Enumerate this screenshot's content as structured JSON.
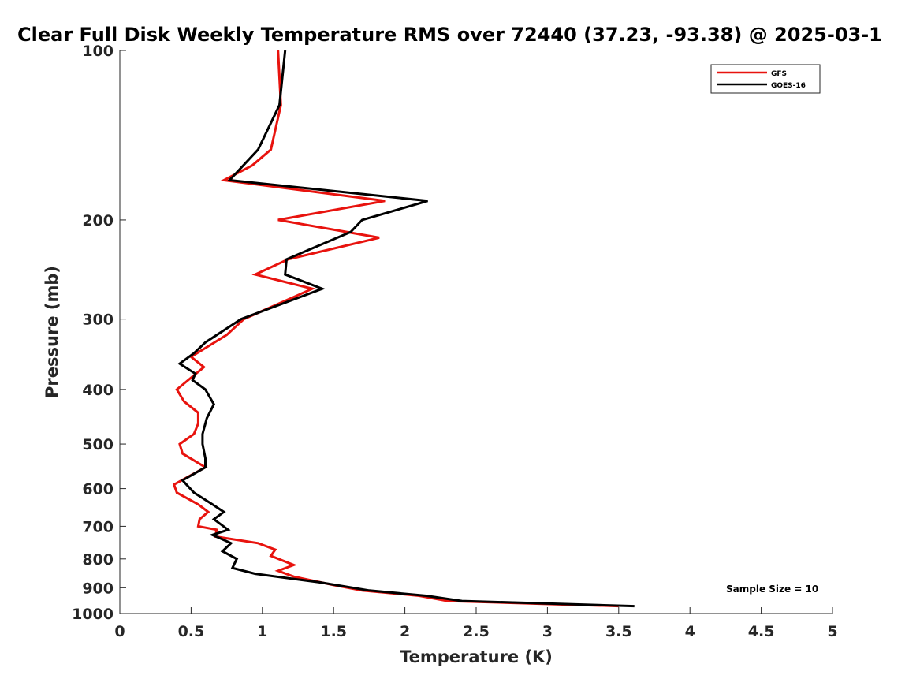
{
  "chart_data": {
    "type": "line",
    "title": "Clear Full Disk Weekly Temperature RMS over 72440 (37.23, -93.38) @ 2025-03-1",
    "xlabel": "Temperature (K)",
    "ylabel": "Pressure (mb)",
    "xlim": [
      0,
      5
    ],
    "ylim": [
      1000,
      100
    ],
    "yscale": "log",
    "x_ticks": [
      "0",
      "0.5",
      "1",
      "1.5",
      "2",
      "2.5",
      "3",
      "3.5",
      "4",
      "4.5",
      "5"
    ],
    "y_ticks": [
      "100",
      "200",
      "300",
      "400",
      "500",
      "600",
      "700",
      "800",
      "900",
      "1000"
    ],
    "legend_position": "top-right",
    "grid": false,
    "annotation": "Sample Size = 10",
    "series": [
      {
        "name": "GFS",
        "color": "#e8130e",
        "points": [
          [
            1.11,
            100
          ],
          [
            1.13,
            125
          ],
          [
            1.06,
            150
          ],
          [
            0.93,
            160
          ],
          [
            0.73,
            170
          ],
          [
            1.86,
            185
          ],
          [
            1.11,
            200
          ],
          [
            1.82,
            215
          ],
          [
            1.18,
            235
          ],
          [
            0.95,
            250
          ],
          [
            1.35,
            265
          ],
          [
            0.87,
            300
          ],
          [
            0.75,
            320
          ],
          [
            0.5,
            350
          ],
          [
            0.59,
            365
          ],
          [
            0.4,
            400
          ],
          [
            0.45,
            420
          ],
          [
            0.55,
            440
          ],
          [
            0.55,
            460
          ],
          [
            0.52,
            480
          ],
          [
            0.42,
            500
          ],
          [
            0.44,
            520
          ],
          [
            0.6,
            550
          ],
          [
            0.38,
            590
          ],
          [
            0.4,
            610
          ],
          [
            0.55,
            640
          ],
          [
            0.62,
            660
          ],
          [
            0.56,
            680
          ],
          [
            0.55,
            700
          ],
          [
            0.68,
            710
          ],
          [
            0.67,
            730
          ],
          [
            0.97,
            750
          ],
          [
            1.09,
            770
          ],
          [
            1.06,
            790
          ],
          [
            1.22,
            820
          ],
          [
            1.11,
            840
          ],
          [
            1.22,
            860
          ],
          [
            1.5,
            890
          ],
          [
            1.7,
            910
          ],
          [
            2.1,
            930
          ],
          [
            2.3,
            950
          ],
          [
            3.5,
            970
          ]
        ]
      },
      {
        "name": "GOES-16",
        "color": "#000000",
        "points": [
          [
            1.16,
            100
          ],
          [
            1.12,
            125
          ],
          [
            0.97,
            150
          ],
          [
            0.77,
            170
          ],
          [
            2.16,
            185
          ],
          [
            1.7,
            200
          ],
          [
            1.62,
            210
          ],
          [
            1.17,
            235
          ],
          [
            1.16,
            250
          ],
          [
            1.42,
            265
          ],
          [
            0.85,
            300
          ],
          [
            0.6,
            330
          ],
          [
            0.52,
            345
          ],
          [
            0.42,
            360
          ],
          [
            0.53,
            375
          ],
          [
            0.51,
            385
          ],
          [
            0.6,
            400
          ],
          [
            0.66,
            425
          ],
          [
            0.61,
            450
          ],
          [
            0.58,
            480
          ],
          [
            0.58,
            500
          ],
          [
            0.6,
            530
          ],
          [
            0.6,
            550
          ],
          [
            0.44,
            580
          ],
          [
            0.52,
            610
          ],
          [
            0.65,
            640
          ],
          [
            0.73,
            660
          ],
          [
            0.66,
            680
          ],
          [
            0.76,
            710
          ],
          [
            0.65,
            725
          ],
          [
            0.78,
            750
          ],
          [
            0.72,
            775
          ],
          [
            0.82,
            800
          ],
          [
            0.79,
            830
          ],
          [
            0.95,
            850
          ],
          [
            1.4,
            880
          ],
          [
            1.75,
            910
          ],
          [
            2.15,
            930
          ],
          [
            2.4,
            950
          ],
          [
            3.61,
            970
          ]
        ]
      }
    ]
  }
}
